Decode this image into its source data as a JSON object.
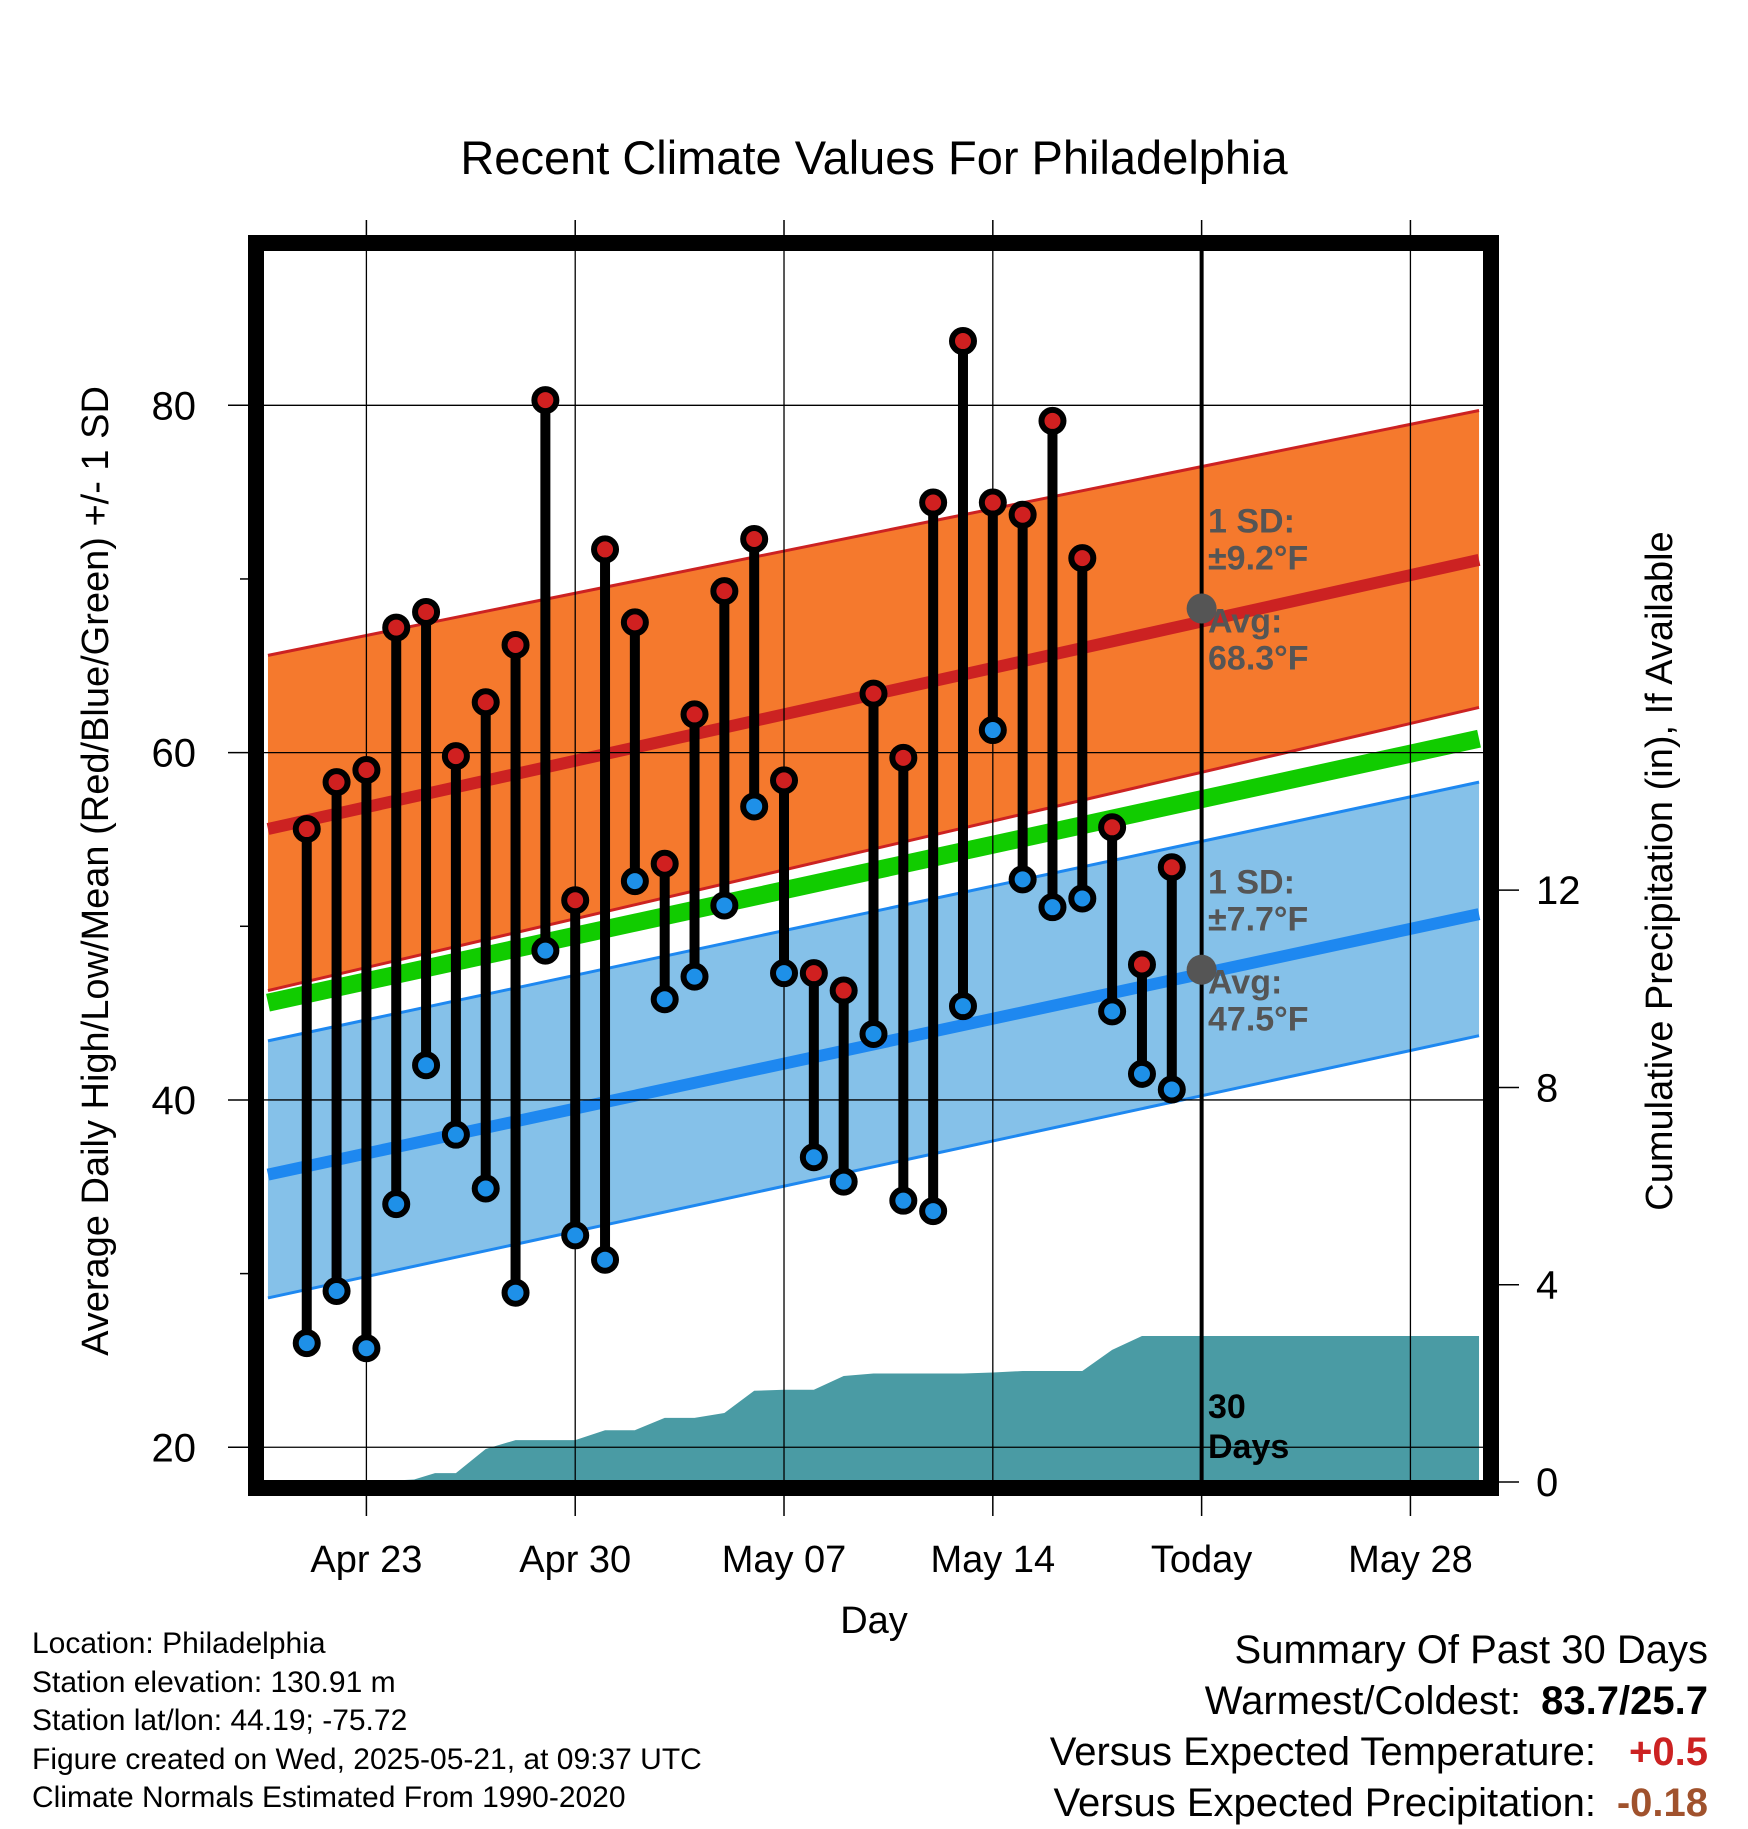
{
  "chart_data": {
    "type": "line",
    "title": "Recent Climate Values For Philadelphia",
    "xlabel": "Day",
    "ylabel": "Average Daily High/Low/Mean (Red/Blue/Green) +/- 1 SD",
    "y2label": "Cumulative Precipitation (in), If Available",
    "ylim": [
      18,
      89
    ],
    "y2lim": [
      0,
      25
    ],
    "xlim": [
      -3.5,
      37.5
    ],
    "x_tick_days": [
      0,
      7,
      14,
      21,
      28,
      35
    ],
    "x_tick_labels": [
      "Apr 23",
      "Apr 30",
      "May 07",
      "May 14",
      "Today",
      "May 28"
    ],
    "y_ticks": [
      20,
      40,
      60,
      80
    ],
    "y_minor_ticks": [
      30,
      50,
      70
    ],
    "y2_ticks": [
      0,
      4,
      8,
      12
    ],
    "grid": true,
    "today_marker": "Today",
    "observed_days": [
      -2,
      -1,
      0,
      1,
      2,
      3,
      4,
      5,
      6,
      7,
      8,
      9,
      10,
      11,
      12,
      13,
      14,
      15,
      16,
      17,
      18,
      19,
      20,
      21,
      22,
      23,
      24,
      25,
      26,
      27
    ],
    "observed_high": [
      55.6,
      58.3,
      59.0,
      67.2,
      68.1,
      59.8,
      62.9,
      66.2,
      80.3,
      51.5,
      71.7,
      67.5,
      53.6,
      62.2,
      69.3,
      72.3,
      58.4,
      47.3,
      46.3,
      63.4,
      59.7,
      74.4,
      83.7,
      74.4,
      73.7,
      79.1,
      71.2,
      55.7,
      47.8,
      53.4
    ],
    "observed_low": [
      26.0,
      29.0,
      25.7,
      34.0,
      42.0,
      38.0,
      34.9,
      28.9,
      48.6,
      32.2,
      30.8,
      52.6,
      45.8,
      47.1,
      51.2,
      56.9,
      47.3,
      36.7,
      35.3,
      43.8,
      34.2,
      33.6,
      45.4,
      61.3,
      52.7,
      51.1,
      51.6,
      45.1,
      41.5,
      40.6
    ],
    "normal_x": [
      -3.3,
      37.3
    ],
    "normal_high": [
      55.6,
      71.1
    ],
    "normal_low": [
      35.7,
      50.7
    ],
    "normal_mean": [
      45.6,
      60.8
    ],
    "high_sd_range": [
      [
        46.3,
        65.6
      ],
      [
        62.6,
        79.7
      ]
    ],
    "low_sd_range": [
      [
        28.6,
        43.4
      ],
      [
        43.7,
        58.3
      ]
    ],
    "precip_days": [
      -3.3,
      0,
      1.6,
      2.3,
      3,
      4,
      5,
      7,
      8,
      9,
      10,
      11,
      12,
      13,
      14,
      15,
      16,
      17,
      18,
      19,
      20,
      21,
      22,
      23,
      24,
      25,
      26,
      27,
      28,
      37.3
    ],
    "precip_cumulative": [
      0,
      0,
      0.05,
      0.18,
      0.18,
      0.67,
      0.85,
      0.85,
      1.05,
      1.05,
      1.3,
      1.3,
      1.4,
      1.85,
      1.87,
      1.87,
      2.15,
      2.2,
      2.2,
      2.2,
      2.2,
      2.22,
      2.25,
      2.25,
      2.25,
      2.68,
      2.96,
      2.96,
      2.96,
      2.96
    ],
    "annotations": {
      "high_sd": "1 SD:",
      "high_sd_value": "±9.2°F",
      "high_avg": "Avg:",
      "high_avg_value": "68.3°F",
      "low_sd": "1 SD:",
      "low_sd_value": "±7.7°F",
      "low_avg": "Avg:",
      "low_avg_value": "47.5°F",
      "days_count": "30",
      "days_word": "Days"
    },
    "today_avg_high": 68.3,
    "today_avg_low": 47.5,
    "colors": {
      "high_band": "#f5792d",
      "high_line": "#cc2222",
      "low_band": "#85c1e9",
      "low_line": "#1e88f0",
      "mean_line": "#11cc00",
      "precip": "#4a9ba4",
      "high_dot": "#d02020",
      "low_dot": "#1e90e8",
      "marker_gray": "#555555"
    }
  },
  "footer": {
    "location": "Location: Philadelphia",
    "elevation": "Station elevation: 130.91 m",
    "latlon": "Station lat/lon: 44.19; -75.72",
    "created": "Figure created on Wed, 2025-05-21, at 09:37 UTC",
    "normals": "Climate Normals Estimated From 1990-2020"
  },
  "summary": {
    "title": "Summary Of Past 30 Days",
    "warmest_coldest_label": "Warmest/Coldest:",
    "warmest_coldest_value": "83.7/25.7",
    "temp_label": "Versus Expected Temperature:",
    "temp_value": "+0.5",
    "temp_color": "#cc2222",
    "precip_label": "Versus Expected Precipitation:",
    "precip_value": "-0.18",
    "precip_color": "#a0522d"
  }
}
